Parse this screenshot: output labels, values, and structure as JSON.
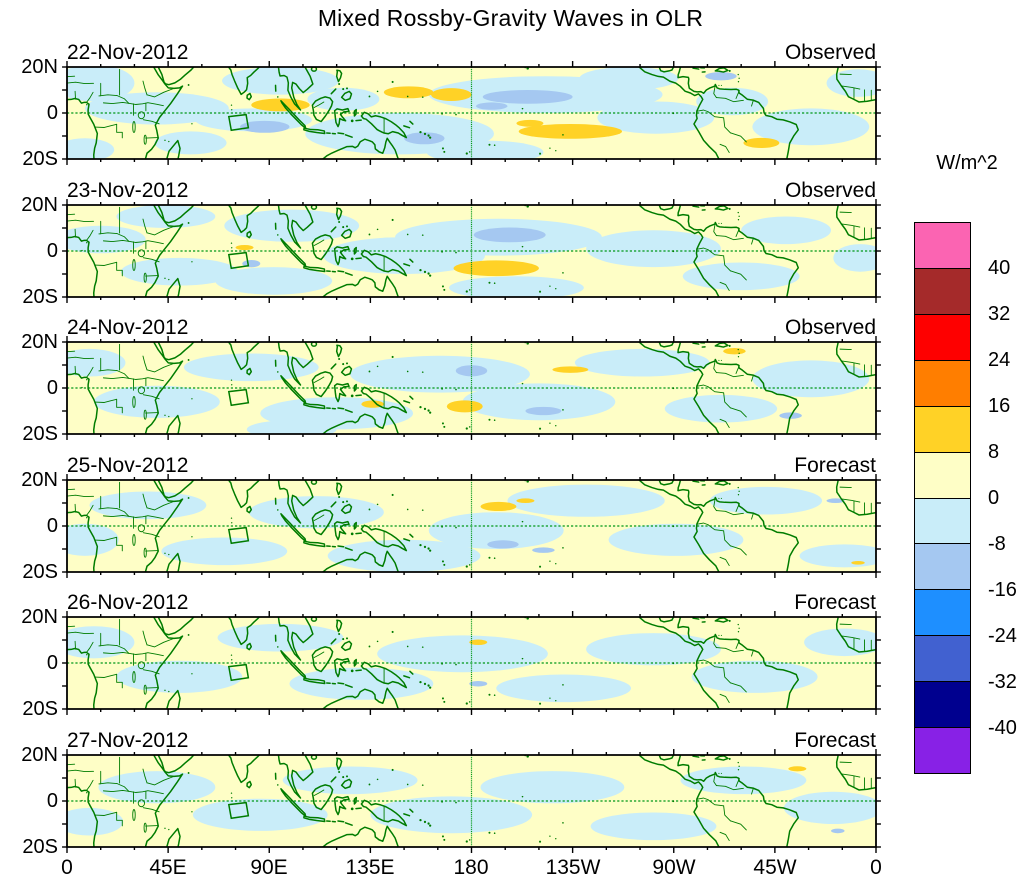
{
  "title": "Mixed Rossby-Gravity Waves in OLR",
  "colorbar": {
    "unit_label": "W/m^2",
    "tick_labels": [
      "40",
      "32",
      "24",
      "16",
      "8",
      "0",
      "-8",
      "-16",
      "-24",
      "-32",
      "-40"
    ],
    "colors_top_to_bottom": [
      "#FB64B2",
      "#A52A2A",
      "#FE0000",
      "#FF7E00",
      "#FFD226",
      "#FEFEC6",
      "#C9EDF9",
      "#A5C8F1",
      "#1E8FFF",
      "#4161D0",
      "#00008F",
      "#8821E6"
    ]
  },
  "axes": {
    "x_tick_labels": [
      "0",
      "45E",
      "90E",
      "135E",
      "180",
      "135W",
      "90W",
      "45W",
      "0"
    ],
    "y_tick_labels": [
      "20N",
      "0",
      "20S"
    ]
  },
  "map_style": {
    "coast_color": "#007C00",
    "dash_color": "#009818",
    "frame_color": "#000000"
  },
  "chart_data": {
    "type": "filled_contour_map",
    "lon_range_deg": [
      0,
      360
    ],
    "lat_range_deg": [
      -20,
      20
    ],
    "contour_levels_w_m2": [
      -40,
      -32,
      -24,
      -16,
      -8,
      0,
      8,
      16,
      24,
      32,
      40
    ],
    "equator_line": "dashed",
    "dateline_180": "dashed",
    "marker_box_lon_lat": [
      [
        72,
        -1.6
      ],
      [
        79.7,
        -0.7
      ],
      [
        80.7,
        -6.4
      ],
      [
        73.1,
        -7.5
      ]
    ],
    "panels": [
      {
        "date": "22-Nov-2012",
        "source": "Observed",
        "weak_negative_regions": [
          [
            12,
            13,
            18,
            8
          ],
          [
            40,
            2,
            32,
            7
          ],
          [
            8,
            -16,
            13,
            5
          ],
          [
            55,
            -13,
            16,
            5
          ],
          [
            95,
            14,
            26,
            6
          ],
          [
            83,
            -3,
            26,
            5
          ],
          [
            148,
            -9,
            42,
            9
          ],
          [
            123,
            6,
            16,
            5
          ],
          [
            213,
            8,
            52,
            8
          ],
          [
            186,
            -17,
            26,
            5
          ],
          [
            262,
            -2,
            26,
            7
          ],
          [
            250,
            15,
            22,
            5
          ],
          [
            296,
            5,
            16,
            6
          ],
          [
            331,
            -6,
            26,
            8
          ],
          [
            352,
            13,
            14,
            6
          ]
        ],
        "positive_anomalies": [
          [
            95,
            3.5,
            13,
            2.8
          ],
          [
            152,
            9,
            11,
            2.6
          ],
          [
            171,
            8,
            9,
            2.8
          ],
          [
            224,
            -8,
            23,
            3.2
          ],
          [
            206,
            -4.5,
            6,
            1.5
          ],
          [
            309,
            -13,
            8,
            2.2
          ]
        ],
        "negative_anomalies": [
          [
            88,
            -6,
            11,
            2.6
          ],
          [
            159,
            -11,
            9,
            2.6
          ],
          [
            205,
            7,
            20,
            3.0
          ],
          [
            189,
            3,
            7,
            1.6
          ],
          [
            291,
            16,
            7,
            1.8
          ]
        ]
      },
      {
        "date": "23-Nov-2012",
        "source": "Observed",
        "weak_negative_regions": [
          [
            15,
            5,
            20,
            6
          ],
          [
            50,
            -9,
            26,
            6
          ],
          [
            44,
            15,
            22,
            5
          ],
          [
            100,
            11,
            30,
            7
          ],
          [
            92,
            -13,
            26,
            6
          ],
          [
            150,
            -2,
            36,
            8
          ],
          [
            192,
            6,
            46,
            8
          ],
          [
            200,
            -16,
            30,
            5
          ],
          [
            261,
            1,
            30,
            8
          ],
          [
            300,
            -11,
            26,
            6
          ],
          [
            320,
            9,
            20,
            6
          ],
          [
            353,
            -3,
            12,
            6
          ]
        ],
        "positive_anomalies": [
          [
            79,
            1.5,
            4,
            1.1
          ],
          [
            191,
            -7.5,
            19,
            3.4
          ]
        ],
        "negative_anomalies": [
          [
            197,
            7,
            16,
            3.2
          ],
          [
            82,
            -5.5,
            4,
            1.6
          ]
        ]
      },
      {
        "date": "24-Nov-2012",
        "source": "Observed",
        "weak_negative_regions": [
          [
            10,
            11,
            16,
            6
          ],
          [
            40,
            -6,
            28,
            7
          ],
          [
            82,
            9,
            30,
            6
          ],
          [
            120,
            -11,
            34,
            7
          ],
          [
            166,
            6,
            40,
            8
          ],
          [
            210,
            -6,
            34,
            8
          ],
          [
            256,
            11,
            30,
            6
          ],
          [
            291,
            -9,
            25,
            6
          ],
          [
            331,
            4,
            26,
            8
          ],
          [
            100,
            -18,
            20,
            4
          ]
        ],
        "positive_anomalies": [
          [
            177,
            -8,
            8,
            2.6
          ],
          [
            224,
            8,
            8,
            1.4
          ],
          [
            297,
            16,
            5,
            1.4
          ],
          [
            136,
            -7,
            5,
            1.6
          ]
        ],
        "negative_anomalies": [
          [
            180,
            7.5,
            7,
            2.4
          ],
          [
            212,
            -10,
            8,
            1.8
          ],
          [
            322,
            -12,
            5,
            1.4
          ]
        ]
      },
      {
        "date": "25-Nov-2012",
        "source": "Forecast",
        "weak_negative_regions": [
          [
            8,
            -6,
            15,
            7
          ],
          [
            36,
            9,
            26,
            6
          ],
          [
            70,
            -11,
            28,
            6
          ],
          [
            111,
            6,
            30,
            7
          ],
          [
            150,
            -13,
            34,
            7
          ],
          [
            191,
            -2,
            30,
            8
          ],
          [
            231,
            11,
            35,
            7
          ],
          [
            271,
            -6,
            30,
            7
          ],
          [
            311,
            11,
            25,
            6
          ],
          [
            346,
            -13,
            20,
            5
          ]
        ],
        "positive_anomalies": [
          [
            192,
            8.5,
            8,
            2.0
          ],
          [
            204,
            11,
            4,
            1.0
          ],
          [
            352,
            -16,
            3,
            0.8
          ]
        ],
        "negative_anomalies": [
          [
            194,
            -8,
            7,
            1.8
          ],
          [
            212,
            -10.5,
            5,
            1.2
          ],
          [
            342,
            11,
            4,
            1.0
          ]
        ]
      },
      {
        "date": "26-Nov-2012",
        "source": "Forecast",
        "weak_negative_regions": [
          [
            12,
            9,
            18,
            7
          ],
          [
            50,
            -6,
            28,
            7
          ],
          [
            95,
            11,
            28,
            6
          ],
          [
            131,
            -9,
            32,
            7
          ],
          [
            176,
            4,
            38,
            8
          ],
          [
            221,
            -11,
            30,
            6
          ],
          [
            261,
            6,
            30,
            7
          ],
          [
            306,
            -6,
            28,
            7
          ],
          [
            346,
            9,
            18,
            6
          ]
        ],
        "positive_anomalies": [
          [
            183,
            9,
            4,
            1.2
          ]
        ],
        "negative_anomalies": [
          [
            183,
            -9,
            4,
            1.2
          ]
        ]
      },
      {
        "date": "27-Nov-2012",
        "source": "Forecast",
        "weak_negative_regions": [
          [
            10,
            -9,
            15,
            6
          ],
          [
            40,
            6,
            26,
            7
          ],
          [
            86,
            -6,
            30,
            7
          ],
          [
            126,
            9,
            30,
            6
          ],
          [
            171,
            -6,
            36,
            8
          ],
          [
            216,
            6,
            32,
            7
          ],
          [
            261,
            -11,
            28,
            6
          ],
          [
            301,
            9,
            28,
            6
          ],
          [
            341,
            -3,
            22,
            7
          ]
        ],
        "positive_anomalies": [
          [
            325,
            14,
            4,
            1.1
          ]
        ],
        "negative_anomalies": [
          [
            343,
            -13,
            3,
            1.0
          ]
        ]
      }
    ]
  }
}
